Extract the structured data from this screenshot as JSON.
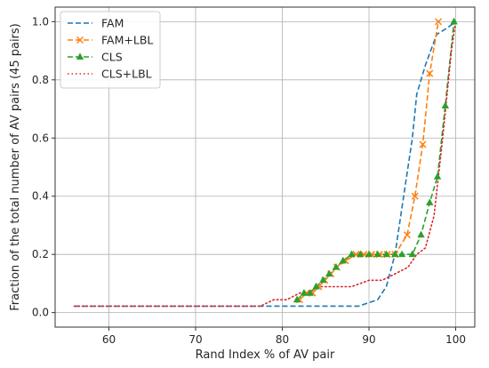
{
  "chart_data": {
    "type": "line",
    "title": "",
    "xlabel": "Rand Index % of AV pair",
    "ylabel": "Fraction of the total number of AV pairs (45 pairs)",
    "xlim": [
      53.8,
      102.2
    ],
    "ylim": [
      -0.05,
      1.05
    ],
    "xticks": [
      60,
      70,
      80,
      90,
      100
    ],
    "xtick_labels": [
      "60",
      "70",
      "80",
      "90",
      "100"
    ],
    "yticks": [
      0.0,
      0.2,
      0.4,
      0.6,
      0.8,
      1.0
    ],
    "ytick_labels": [
      "0.0",
      "0.2",
      "0.4",
      "0.6",
      "0.8",
      "1.0"
    ],
    "grid": true,
    "legend_position": "top-left",
    "series": [
      {
        "name": "FAM",
        "color": "#1f77b4",
        "linestyle": "dashed",
        "marker": "none",
        "points": [
          [
            56,
            0.022
          ],
          [
            88.8,
            0.022
          ],
          [
            91,
            0.044
          ],
          [
            92,
            0.089
          ],
          [
            93,
            0.2
          ],
          [
            94,
            0.4
          ],
          [
            95,
            0.6
          ],
          [
            95.5,
            0.75
          ],
          [
            96.5,
            0.85
          ],
          [
            97.8,
            0.956
          ],
          [
            99,
            0.978
          ],
          [
            100,
            1.0
          ]
        ]
      },
      {
        "name": "FAM+LBL",
        "color": "#ff7f0e",
        "linestyle": "dashed",
        "marker": "x",
        "points": [
          [
            82,
            0.044
          ],
          [
            82.8,
            0.067
          ],
          [
            83.5,
            0.067
          ],
          [
            84.2,
            0.089
          ],
          [
            84.9,
            0.111
          ],
          [
            85.6,
            0.133
          ],
          [
            86.3,
            0.156
          ],
          [
            87.3,
            0.178
          ],
          [
            88.5,
            0.2
          ],
          [
            89.4,
            0.2
          ],
          [
            90.3,
            0.2
          ],
          [
            91.2,
            0.2
          ],
          [
            92.1,
            0.2
          ],
          [
            93,
            0.2
          ],
          [
            94.4,
            0.267
          ],
          [
            95.3,
            0.4
          ],
          [
            96.2,
            0.578
          ],
          [
            97,
            0.822
          ],
          [
            98,
            1.0
          ]
        ]
      },
      {
        "name": "CLS",
        "color": "#2ca02c",
        "linestyle": "dashed",
        "marker": "triangle",
        "points": [
          [
            81.7,
            0.044
          ],
          [
            82.5,
            0.067
          ],
          [
            83.2,
            0.067
          ],
          [
            83.9,
            0.089
          ],
          [
            84.7,
            0.111
          ],
          [
            85.4,
            0.133
          ],
          [
            86.2,
            0.156
          ],
          [
            87,
            0.178
          ],
          [
            88,
            0.2
          ],
          [
            89,
            0.2
          ],
          [
            90,
            0.2
          ],
          [
            91,
            0.2
          ],
          [
            92,
            0.2
          ],
          [
            93,
            0.2
          ],
          [
            93.8,
            0.2
          ],
          [
            95,
            0.2
          ],
          [
            96,
            0.267
          ],
          [
            97,
            0.378
          ],
          [
            97.9,
            0.467
          ],
          [
            98.8,
            0.711
          ],
          [
            99.8,
            1.0
          ]
        ]
      },
      {
        "name": "CLS+LBL",
        "color": "#d62728",
        "linestyle": "dotted",
        "marker": "none",
        "points": [
          [
            56,
            0.022
          ],
          [
            77.5,
            0.022
          ],
          [
            79,
            0.044
          ],
          [
            80.5,
            0.044
          ],
          [
            82,
            0.067
          ],
          [
            83,
            0.067
          ],
          [
            84,
            0.089
          ],
          [
            86,
            0.089
          ],
          [
            88,
            0.089
          ],
          [
            89,
            0.1
          ],
          [
            90,
            0.111
          ],
          [
            91.5,
            0.111
          ],
          [
            93,
            0.133
          ],
          [
            94.5,
            0.156
          ],
          [
            95.5,
            0.2
          ],
          [
            96.5,
            0.222
          ],
          [
            97.5,
            0.333
          ],
          [
            98.5,
            0.6
          ],
          [
            99.5,
            0.9
          ],
          [
            100,
            1.0
          ]
        ]
      }
    ]
  }
}
